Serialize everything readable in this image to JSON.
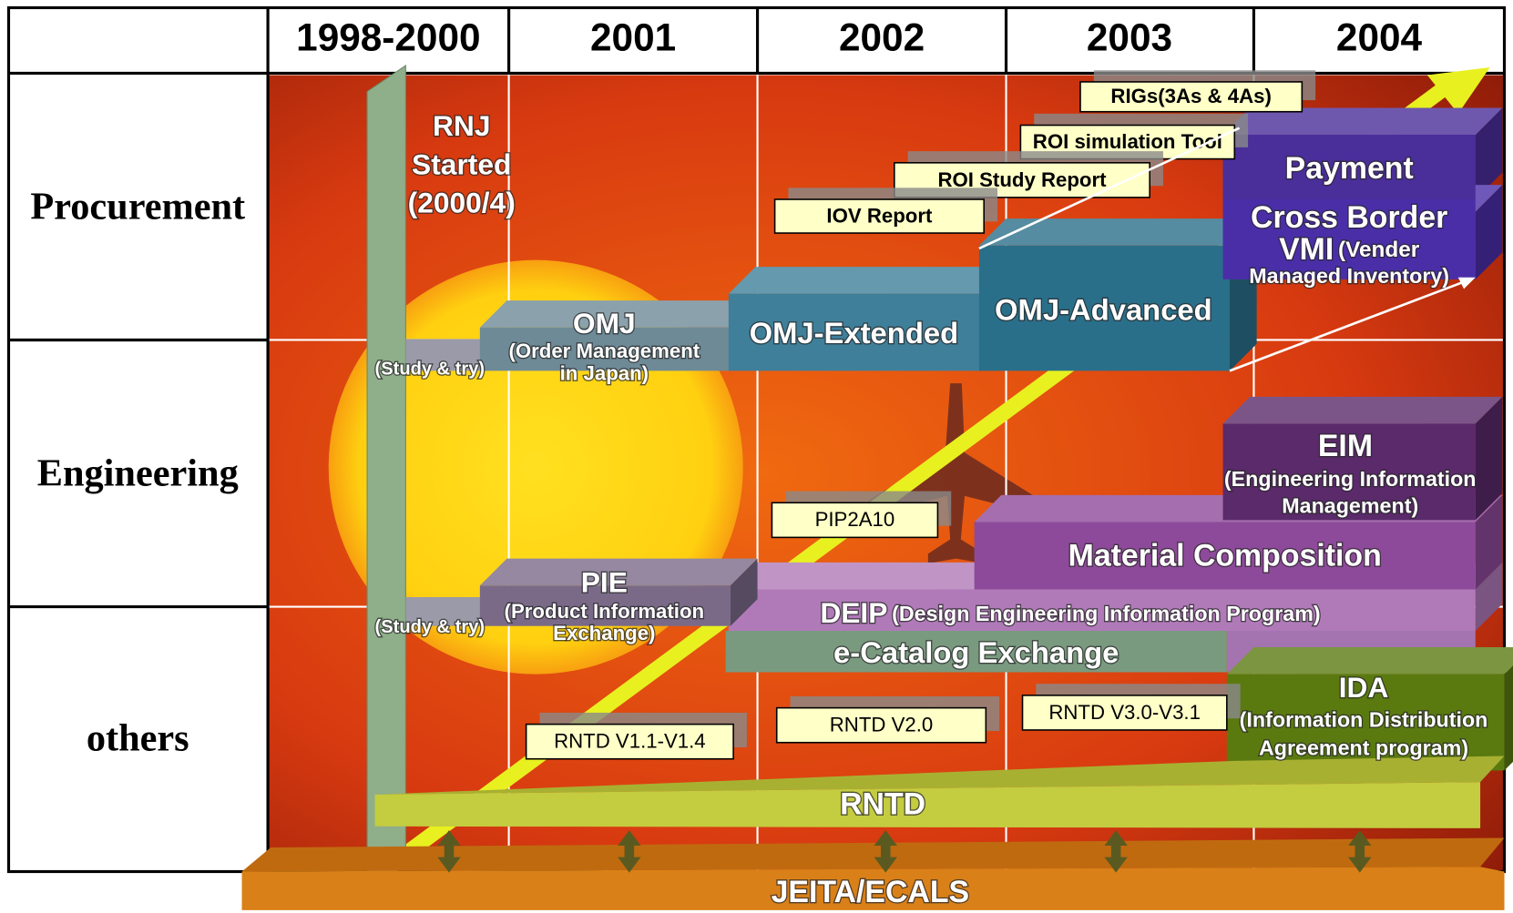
{
  "header": {
    "columns": [
      "1998-2000",
      "2001",
      "2002",
      "2003",
      "2004"
    ]
  },
  "rows": [
    "Procurement",
    "Engineering",
    "others"
  ],
  "milestone": [
    "RNJ",
    "Started",
    "(2000/4)"
  ],
  "blocks": {
    "study_procurement": "(Study & try)",
    "omj": {
      "title": "OMJ",
      "sub": [
        "(Order Management",
        "in Japan)"
      ]
    },
    "omj_extended": "OMJ-Extended",
    "omj_advanced": "OMJ-Advanced",
    "payment": "Payment",
    "vmi": {
      "title": [
        "Cross Border",
        "VMI"
      ],
      "sub": [
        "(Vender",
        "Managed Inventory)"
      ]
    },
    "eim": {
      "title": "EIM",
      "sub": [
        "(Engineering Information",
        "Management)"
      ]
    },
    "material": "Material Composition",
    "study_engineering": "(Study & try)",
    "pie": {
      "title": "PIE",
      "sub": [
        "(Product Information",
        "Exchange)"
      ]
    },
    "deip": {
      "title": "DEIP",
      "sub": "(Design Engineering Information Program)"
    },
    "ecatalog": "e-Catalog Exchange",
    "ida": {
      "title": "IDA",
      "sub": [
        "(Information Distribution",
        "Agreement program)"
      ]
    },
    "rntd": "RNTD",
    "jeita": "JEITA/ECALS"
  },
  "notes": [
    "RIGs(3As & 4As)",
    "ROI simulation Tool",
    "ROI Study Report",
    "IOV Report",
    "PIP2A10",
    "RNTD V1.1-V1.4",
    "RNTD V2.0",
    "RNTD V3.0-V3.1"
  ]
}
